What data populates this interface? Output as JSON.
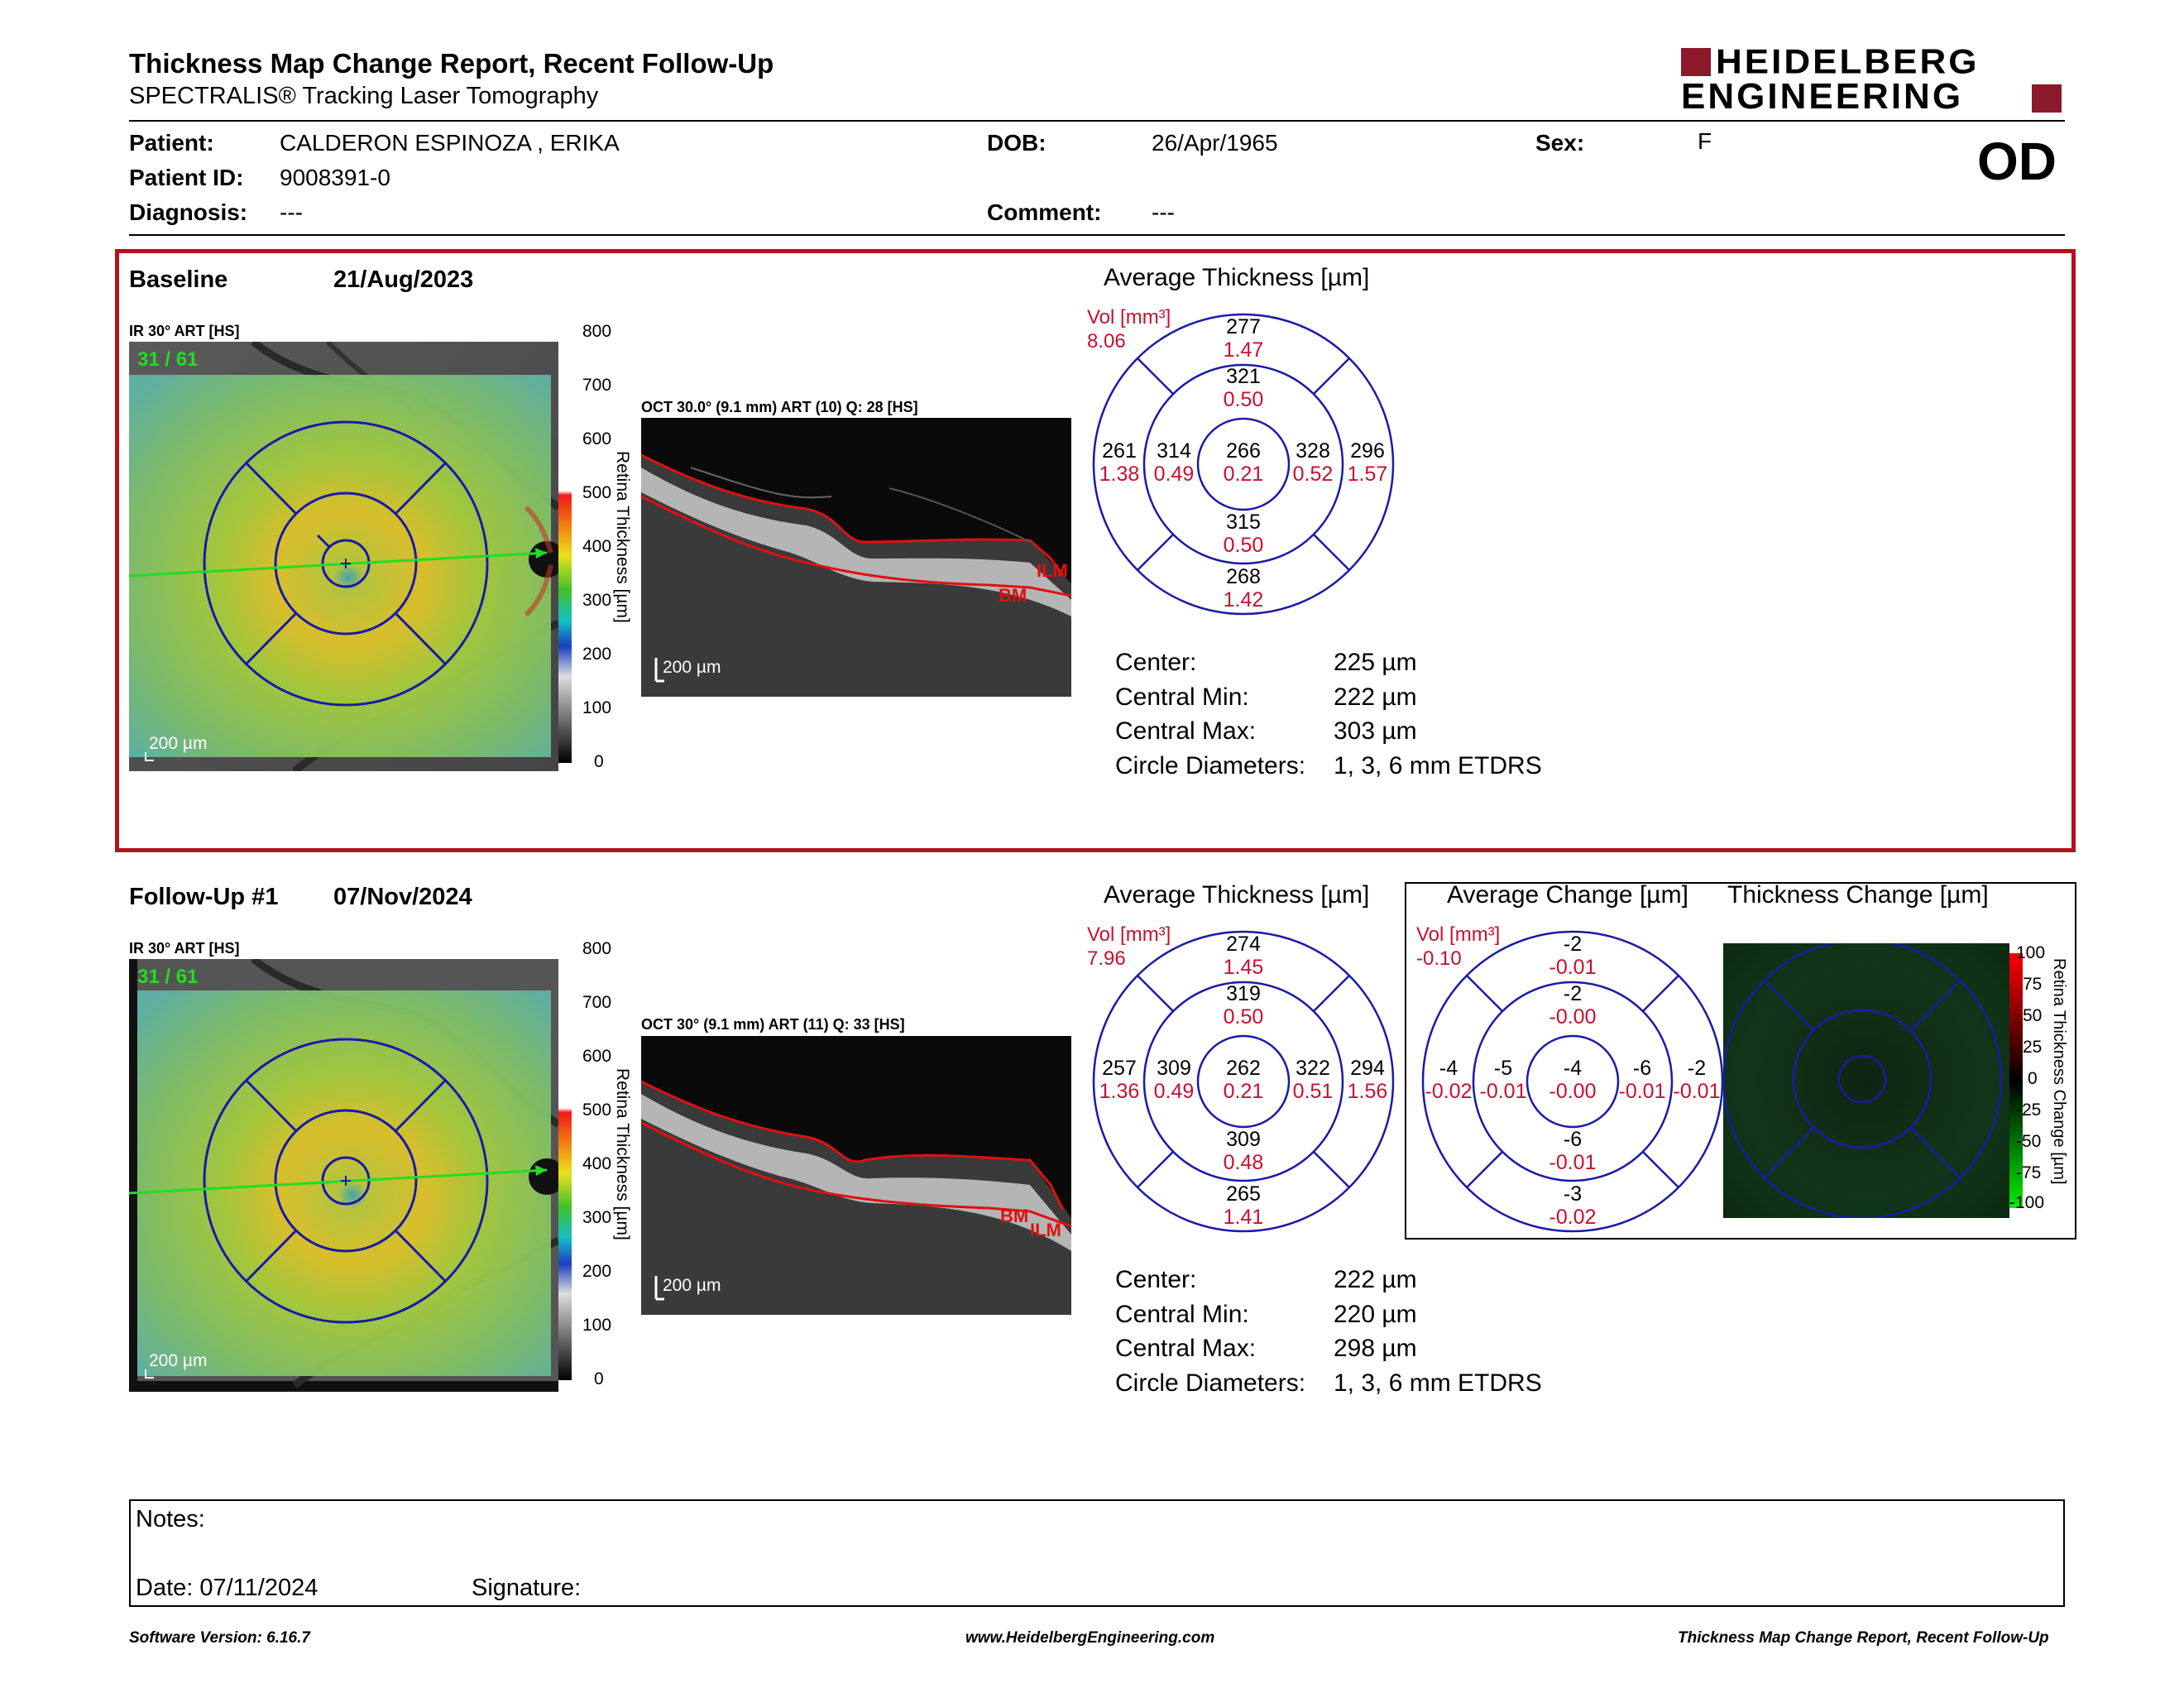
{
  "header": {
    "title": "Thickness Map Change Report, Recent Follow-Up",
    "subtitle": "SPECTRALIS® Tracking Laser Tomography",
    "logo_line1": "HEIDELBERG",
    "logo_line2": "ENGINEERING",
    "eye": "OD"
  },
  "patient": {
    "name_label": "Patient:",
    "name": "CALDERON ESPINOZA , ERIKA",
    "id_label": "Patient ID:",
    "id": "9008391-0",
    "diagnosis_label": "Diagnosis:",
    "diagnosis": "---",
    "dob_label": "DOB:",
    "dob": "26/Apr/1965",
    "comment_label": "Comment:",
    "comment": "---",
    "sex_label": "Sex:",
    "sex": "F"
  },
  "baseline": {
    "label": "Baseline",
    "date": "21/Aug/2023",
    "ir_label": "IR 30° ART [HS]",
    "ir_counter": "31 / 61",
    "ir_scale": "200 µm",
    "oct_label": "OCT 30.0° (9.1 mm) ART (10) Q: 28 [HS]",
    "oct_scale": "200 µm",
    "oct_tags": [
      "ILM",
      "BM"
    ],
    "colorbar_title": "Retina Thickness [µm]",
    "colorbar_ticks": [
      "800",
      "700",
      "600",
      "500",
      "400",
      "300",
      "200",
      "100",
      "0"
    ],
    "avg_title": "Average Thickness [µm]",
    "vol_label": "Vol [mm³]",
    "vol_total": "8.06",
    "sectors": {
      "outer_top": [
        "277",
        "1.47"
      ],
      "inner_top": [
        "321",
        "0.50"
      ],
      "outer_left": [
        "261",
        "1.38"
      ],
      "inner_left": [
        "314",
        "0.49"
      ],
      "center": [
        "266",
        "0.21"
      ],
      "inner_right": [
        "328",
        "0.52"
      ],
      "outer_right": [
        "296",
        "1.57"
      ],
      "inner_bottom": [
        "315",
        "0.50"
      ],
      "outer_bottom": [
        "268",
        "1.42"
      ]
    },
    "info": [
      {
        "label": "Center:",
        "value": "225 µm"
      },
      {
        "label": "Central Min:",
        "value": "222 µm"
      },
      {
        "label": "Central Max:",
        "value": "303 µm"
      },
      {
        "label": "Circle Diameters:",
        "value": "1, 3, 6 mm ETDRS"
      }
    ]
  },
  "followup": {
    "label": "Follow-Up #1",
    "date": "07/Nov/2024",
    "ir_label": "IR 30° ART [HS]",
    "ir_counter": "31 / 61",
    "ir_scale": "200 µm",
    "oct_label": "OCT 30° (9.1 mm) ART (11) Q: 33 [HS]",
    "oct_scale": "200 µm",
    "oct_tags": [
      "BM",
      "ILM"
    ],
    "colorbar_title": "Retina Thickness [µm]",
    "colorbar_ticks": [
      "800",
      "700",
      "600",
      "500",
      "400",
      "300",
      "200",
      "100",
      "0"
    ],
    "avg_title": "Average Thickness [µm]",
    "vol_label": "Vol [mm³]",
    "vol_total": "7.96",
    "sectors": {
      "outer_top": [
        "274",
        "1.45"
      ],
      "inner_top": [
        "319",
        "0.50"
      ],
      "outer_left": [
        "257",
        "1.36"
      ],
      "inner_left": [
        "309",
        "0.49"
      ],
      "center": [
        "262",
        "0.21"
      ],
      "inner_right": [
        "322",
        "0.51"
      ],
      "outer_right": [
        "294",
        "1.56"
      ],
      "inner_bottom": [
        "309",
        "0.48"
      ],
      "outer_bottom": [
        "265",
        "1.41"
      ]
    },
    "info": [
      {
        "label": "Center:",
        "value": "222 µm"
      },
      {
        "label": "Central Min:",
        "value": "220 µm"
      },
      {
        "label": "Central Max:",
        "value": "298 µm"
      },
      {
        "label": "Circle Diameters:",
        "value": "1, 3, 6 mm ETDRS"
      }
    ]
  },
  "change": {
    "avg_title": "Average Change [µm]",
    "map_title": "Thickness Change [µm]",
    "vol_label": "Vol [mm³]",
    "vol_total": "-0.10",
    "sectors": {
      "outer_top": [
        "-2",
        "-0.01"
      ],
      "inner_top": [
        "-2",
        "-0.00"
      ],
      "outer_left": [
        "-4",
        "-0.02"
      ],
      "inner_left": [
        "-5",
        "-0.01"
      ],
      "center": [
        "-4",
        "-0.00"
      ],
      "inner_right": [
        "-6",
        "-0.01"
      ],
      "outer_right": [
        "-2",
        "-0.01"
      ],
      "inner_bottom": [
        "-6",
        "-0.01"
      ],
      "outer_bottom": [
        "-3",
        "-0.02"
      ]
    },
    "colorbar_title": "Retina Thickness Change [µm]",
    "colorbar_ticks": [
      "100",
      "75",
      "50",
      "25",
      "0",
      "-25",
      "-50",
      "-75",
      "-100"
    ]
  },
  "notes": {
    "notes_label": "Notes:",
    "date_label": "Date: 07/11/2024",
    "signature_label": "Signature:"
  },
  "footer": {
    "version": "Software Version: 6.16.7",
    "website": "www.HeidelbergEngineering.com",
    "report": "Thickness Map Change Report, Recent Follow-Up"
  },
  "colors": {
    "accent_red": "#b5121b",
    "etdrs_blue": "#1a1aa8",
    "value_red": "#c8102e",
    "segment_red": "#e01010",
    "scan_green": "#22dd22"
  }
}
